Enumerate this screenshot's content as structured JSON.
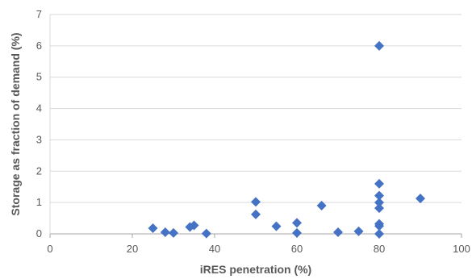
{
  "chart_data": {
    "type": "scatter",
    "title": "",
    "xlabel": "iRES penetration (%)",
    "ylabel": "Storage as fraction of demand (%)",
    "xlim": [
      0,
      100
    ],
    "ylim": [
      0,
      7
    ],
    "xticks": [
      0,
      20,
      40,
      60,
      80,
      100
    ],
    "yticks": [
      0,
      1,
      2,
      3,
      4,
      5,
      6,
      7
    ],
    "grid": "horizontal",
    "legend": "none",
    "marker": "diamond",
    "colors": {
      "marker": "#4472C4",
      "grid": "#d9d9d9",
      "axis": "#a6a6a6",
      "text": "#595959"
    },
    "series": [
      {
        "points": [
          {
            "x": 25,
            "y": 0.18
          },
          {
            "x": 28,
            "y": 0.05
          },
          {
            "x": 30,
            "y": 0.03
          },
          {
            "x": 34,
            "y": 0.22
          },
          {
            "x": 35,
            "y": 0.27
          },
          {
            "x": 38,
            "y": 0.01
          },
          {
            "x": 50,
            "y": 1.02
          },
          {
            "x": 50,
            "y": 0.62
          },
          {
            "x": 55,
            "y": 0.24
          },
          {
            "x": 60,
            "y": 0.35
          },
          {
            "x": 60,
            "y": 0.03
          },
          {
            "x": 66,
            "y": 0.9
          },
          {
            "x": 70,
            "y": 0.05
          },
          {
            "x": 75,
            "y": 0.08
          },
          {
            "x": 80,
            "y": 6.0
          },
          {
            "x": 80,
            "y": 1.6
          },
          {
            "x": 80,
            "y": 1.22
          },
          {
            "x": 80,
            "y": 1.0
          },
          {
            "x": 80,
            "y": 0.82
          },
          {
            "x": 80,
            "y": 0.32
          },
          {
            "x": 80,
            "y": 0.25
          },
          {
            "x": 80,
            "y": 0.0
          },
          {
            "x": 90,
            "y": 1.13
          }
        ]
      }
    ]
  }
}
